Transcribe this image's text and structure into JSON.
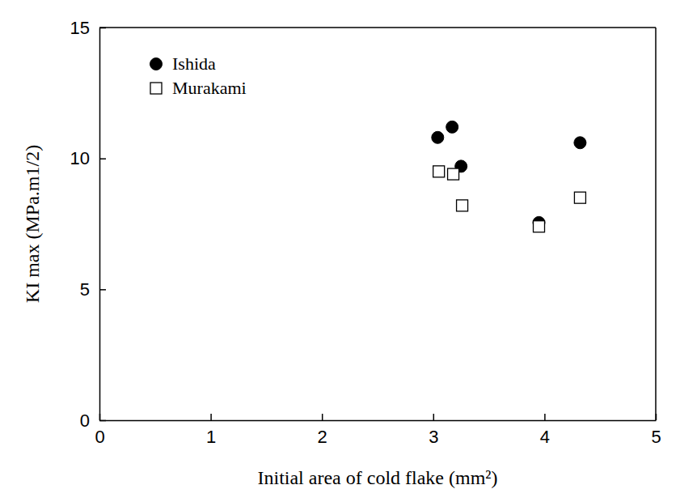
{
  "chart_data": {
    "type": "scatter",
    "x_label": "Initial area of cold flake (mm²)",
    "y_label": "KI max (MPa.m1/2)",
    "xlim": [
      0,
      5
    ],
    "xticks": [
      0,
      1,
      2,
      3,
      4,
      5
    ],
    "ylim": [
      0,
      15
    ],
    "yticks": [
      0,
      5,
      10,
      15
    ],
    "legend": "top-left",
    "grid": false,
    "series": [
      {
        "name": "Ishida",
        "color": "#000000",
        "marker": "circle",
        "x": [
          3.04,
          3.17,
          3.25,
          3.95,
          4.32
        ],
        "values": [
          10.8,
          11.2,
          9.7,
          7.55,
          10.6
        ]
      },
      {
        "name": "Murakami",
        "color": "#000000",
        "marker": "square",
        "x": [
          3.05,
          3.18,
          3.26,
          3.95,
          4.32
        ],
        "values": [
          9.5,
          9.4,
          8.2,
          7.4,
          8.5
        ]
      }
    ]
  }
}
